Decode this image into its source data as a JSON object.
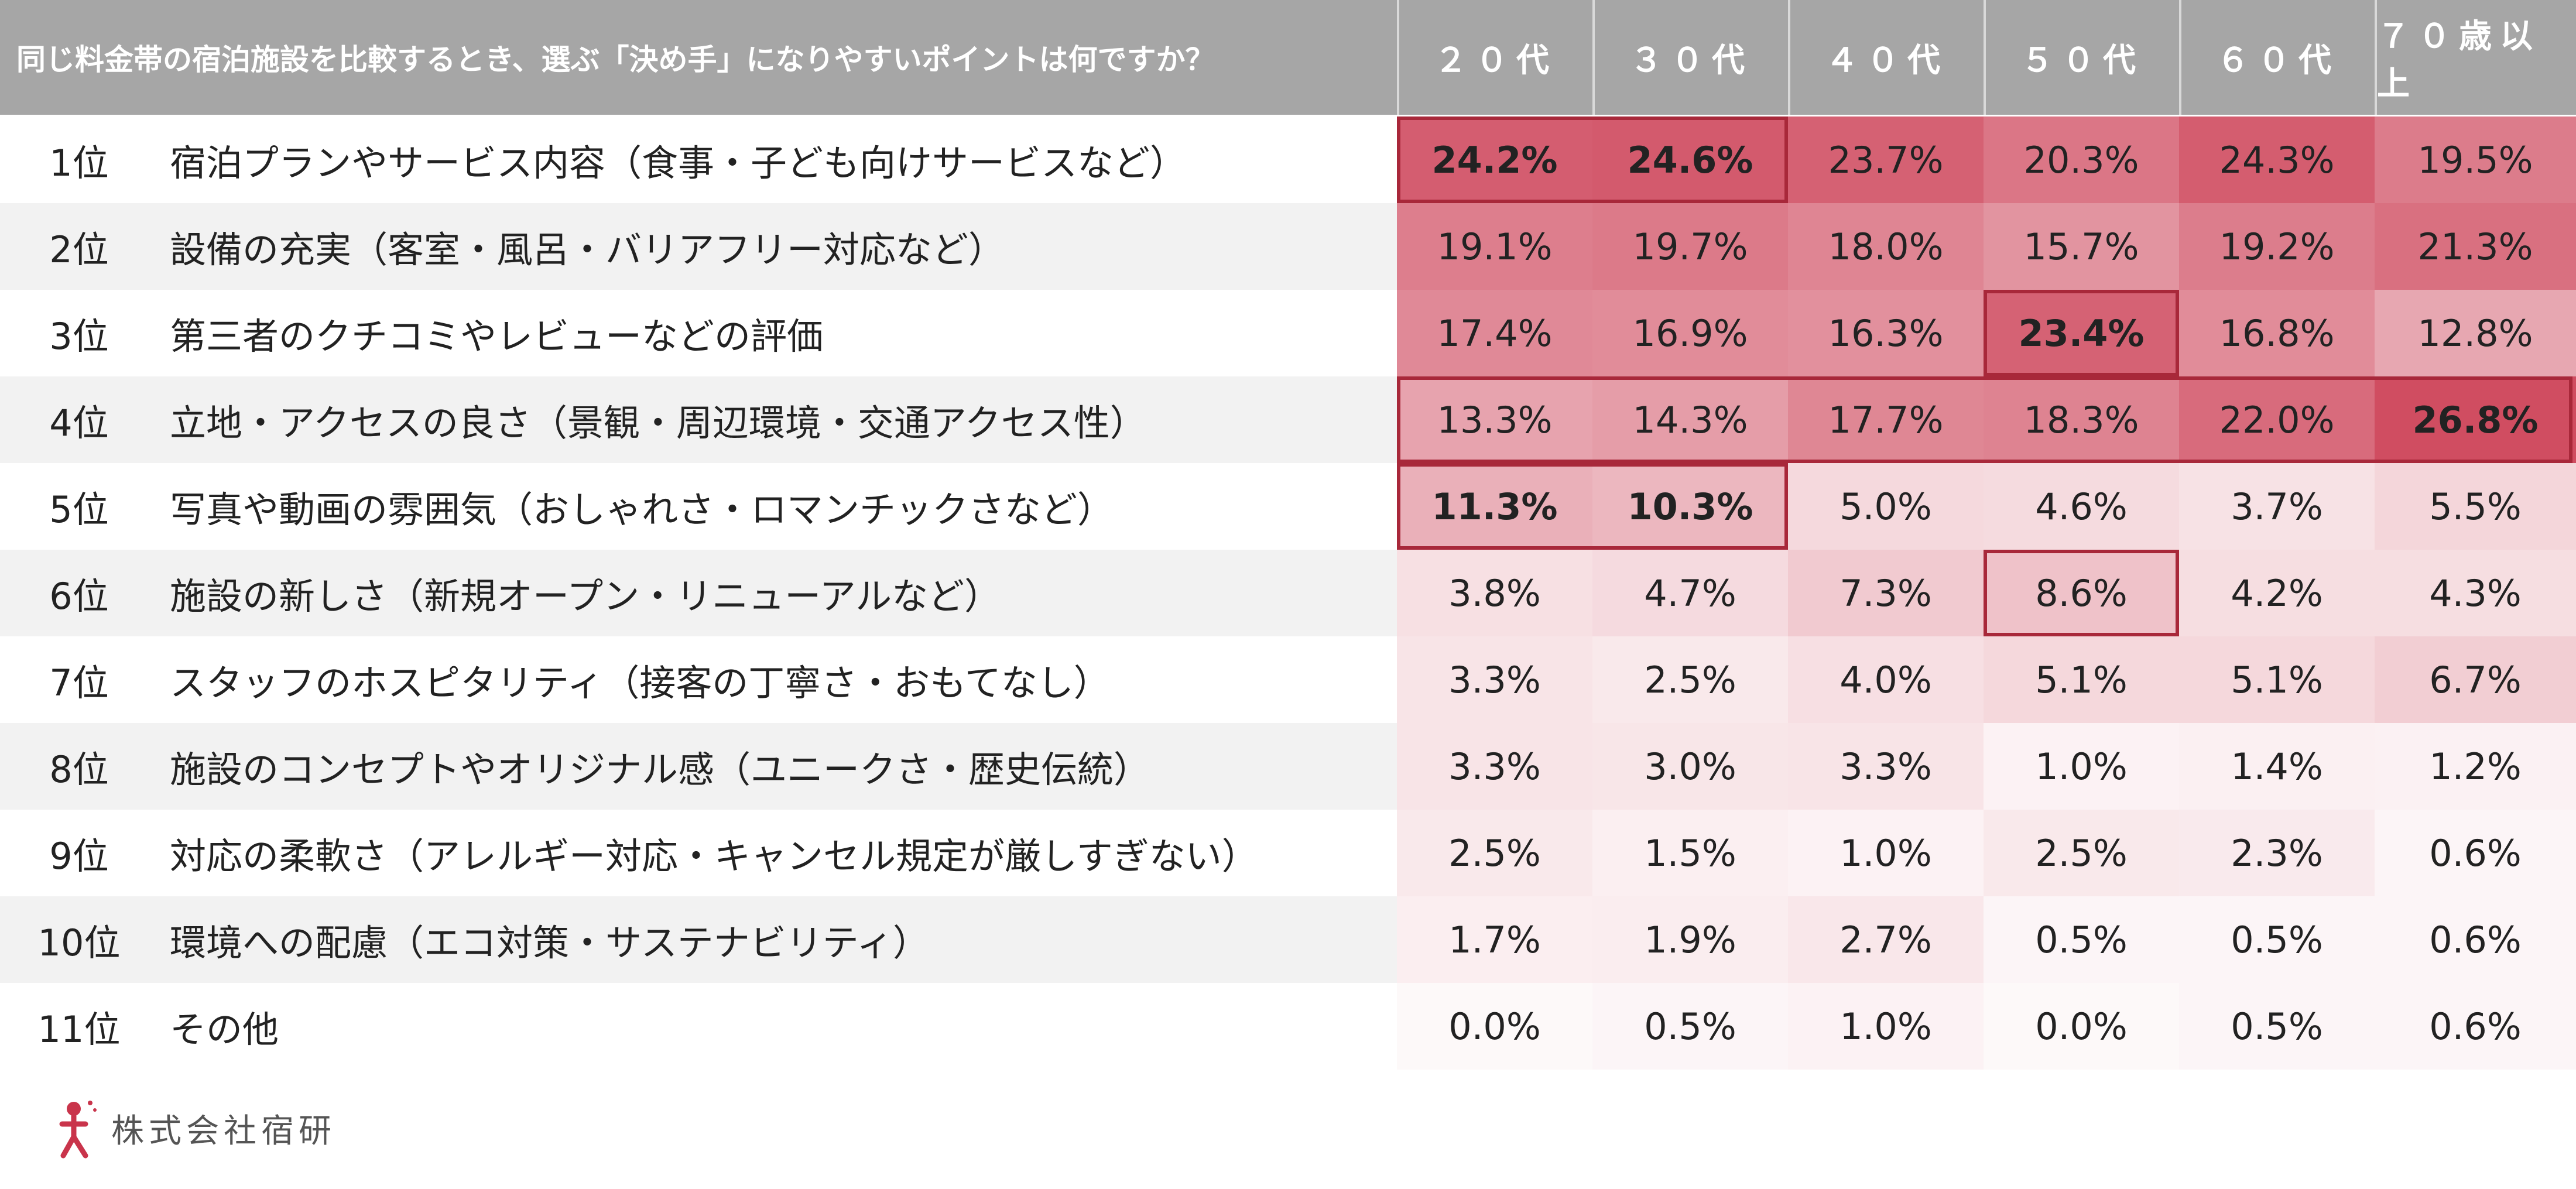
{
  "chart_data": {
    "type": "table",
    "question": "同じ料金帯の宿泊施設を比較するとき、選ぶ「決め手」になりやすいポイントは何ですか？",
    "columns": [
      "２０代",
      "３０代",
      "４０代",
      "５０代",
      "６０代",
      "７０歳以上"
    ],
    "rows": [
      {
        "rank": "1位",
        "label": "宿泊プランやサービス内容（食事・子ども向けサービスなど）",
        "values": [
          24.2,
          24.6,
          23.7,
          20.3,
          24.3,
          19.5
        ]
      },
      {
        "rank": "2位",
        "label": "設備の充実（客室・風呂・バリアフリー対応など）",
        "values": [
          19.1,
          19.7,
          18.0,
          15.7,
          19.2,
          21.3
        ]
      },
      {
        "rank": "3位",
        "label": "第三者のクチコミやレビューなどの評価",
        "values": [
          17.4,
          16.9,
          16.3,
          23.4,
          16.8,
          12.8
        ]
      },
      {
        "rank": "4位",
        "label": "立地・アクセスの良さ（景観・周辺環境・交通アクセス性）",
        "values": [
          13.3,
          14.3,
          17.7,
          18.3,
          22.0,
          26.8
        ]
      },
      {
        "rank": "5位",
        "label": "写真や動画の雰囲気（おしゃれさ・ロマンチックさなど）",
        "values": [
          11.3,
          10.3,
          5.0,
          4.6,
          3.7,
          5.5
        ]
      },
      {
        "rank": "6位",
        "label": "施設の新しさ（新規オープン・リニューアルなど）",
        "values": [
          3.8,
          4.7,
          7.3,
          8.6,
          4.2,
          4.3
        ]
      },
      {
        "rank": "7位",
        "label": "スタッフのホスピタリティ（接客の丁寧さ・おもてなし）",
        "values": [
          3.3,
          2.5,
          4.0,
          5.1,
          5.1,
          6.7
        ]
      },
      {
        "rank": "8位",
        "label": "施設のコンセプトやオリジナル感（ユニークさ・歴史伝統）",
        "values": [
          3.3,
          3.0,
          3.3,
          1.0,
          1.4,
          1.2
        ]
      },
      {
        "rank": "9位",
        "label": "対応の柔軟さ（アレルギー対応・キャンセル規定が厳しすぎない）",
        "values": [
          2.5,
          1.5,
          1.0,
          2.5,
          2.3,
          0.6
        ]
      },
      {
        "rank": "10位",
        "label": "環境への配慮（エコ対策・サステナビリティ）",
        "values": [
          1.7,
          1.9,
          2.7,
          0.5,
          0.5,
          0.6
        ]
      },
      {
        "rank": "11位",
        "label": "その他",
        "values": [
          0.0,
          0.5,
          1.0,
          0.0,
          0.5,
          0.6
        ]
      }
    ],
    "value_suffix": "%",
    "bold_cells": [
      [
        0,
        0
      ],
      [
        0,
        1
      ],
      [
        2,
        3
      ],
      [
        3,
        5
      ],
      [
        4,
        0
      ],
      [
        4,
        1
      ]
    ],
    "highlight_boxes": [
      {
        "row_start": 0,
        "row_end": 0,
        "col_start": 0,
        "col_end": 1
      },
      {
        "row_start": 2,
        "row_end": 2,
        "col_start": 3,
        "col_end": 3
      },
      {
        "row_start": 3,
        "row_end": 3,
        "col_start": 0,
        "col_end": 5
      },
      {
        "row_start": 4,
        "row_end": 4,
        "col_start": 0,
        "col_end": 1
      },
      {
        "row_start": 5,
        "row_end": 5,
        "col_start": 3,
        "col_end": 3
      }
    ],
    "heat_color": "#c9344b",
    "highlight_color": "#a8283a",
    "header_color": "#a6a6a6"
  },
  "brand": {
    "name": "株式会社宿研"
  }
}
